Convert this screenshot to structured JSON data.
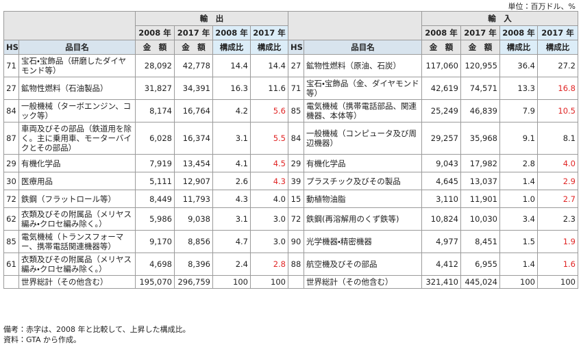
{
  "unit": "単位：百万ドル、%",
  "header": {
    "export": "輸　出",
    "import": "輸　入",
    "year_2008": "2008 年",
    "year_2017": "2017 年",
    "hs": "HS",
    "item": "品目名",
    "amount": "金　額",
    "share": "構成比"
  },
  "rows": [
    {
      "export": {
        "hs": "71",
        "name": "宝石・宝飾品（研磨したダイヤモンド等）",
        "amount_2008": "28,092",
        "amount_2017": "42,778",
        "share_2008": "14.4",
        "share_2017": "14.4",
        "share_rose": false
      },
      "import": {
        "hs": "27",
        "name": "鉱物性燃料（原油、石炭）",
        "amount_2008": "117,060",
        "amount_2017": "120,955",
        "share_2008": "36.4",
        "share_2017": "27.2",
        "share_rose": false
      }
    },
    {
      "export": {
        "hs": "27",
        "name": "鉱物性燃料（石油製品）",
        "amount_2008": "31,827",
        "amount_2017": "34,391",
        "share_2008": "16.3",
        "share_2017": "11.6",
        "share_rose": false
      },
      "import": {
        "hs": "71",
        "name": "宝石・宝飾品（金、ダイヤモンド等）",
        "amount_2008": "42,619",
        "amount_2017": "74,571",
        "share_2008": "13.3",
        "share_2017": "16.8",
        "share_rose": true
      }
    },
    {
      "export": {
        "hs": "84",
        "name": "一般機械（ターボエンジン、コック等）",
        "amount_2008": "8,174",
        "amount_2017": "16,764",
        "share_2008": "4.2",
        "share_2017": "5.6",
        "share_rose": true
      },
      "import": {
        "hs": "85",
        "name": "電気機械（携帯電話部品、関連機器、本体等）",
        "amount_2008": "25,249",
        "amount_2017": "46,839",
        "share_2008": "7.9",
        "share_2017": "10.5",
        "share_rose": true
      }
    },
    {
      "export": {
        "hs": "87",
        "name": "車両及びその部品（鉄道用を除く。主に乗用車、モーターバイクとその部品）",
        "amount_2008": "6,028",
        "amount_2017": "16,374",
        "share_2008": "3.1",
        "share_2017": "5.5",
        "share_rose": true
      },
      "import": {
        "hs": "84",
        "name": "一般機械（コンピュータ及び周辺機器）",
        "amount_2008": "29,257",
        "amount_2017": "35,968",
        "share_2008": "9.1",
        "share_2017": "8.1",
        "share_rose": false
      }
    },
    {
      "export": {
        "hs": "29",
        "name": "有機化学品",
        "amount_2008": "7,919",
        "amount_2017": "13,454",
        "share_2008": "4.1",
        "share_2017": "4.5",
        "share_rose": true
      },
      "import": {
        "hs": "29",
        "name": "有機化学品",
        "amount_2008": "9,043",
        "amount_2017": "17,982",
        "share_2008": "2.8",
        "share_2017": "4.0",
        "share_rose": true
      }
    },
    {
      "export": {
        "hs": "30",
        "name": "医療用品",
        "amount_2008": "5,111",
        "amount_2017": "12,907",
        "share_2008": "2.6",
        "share_2017": "4.3",
        "share_rose": true
      },
      "import": {
        "hs": "39",
        "name": "プラスチック及びその製品",
        "amount_2008": "4,645",
        "amount_2017": "13,037",
        "share_2008": "1.4",
        "share_2017": "2.9",
        "share_rose": true
      }
    },
    {
      "export": {
        "hs": "72",
        "name": "鉄鋼（フラットロール等）",
        "amount_2008": "8,449",
        "amount_2017": "11,793",
        "share_2008": "4.3",
        "share_2017": "4.0",
        "share_rose": false
      },
      "import": {
        "hs": "15",
        "name": "動植物油脂",
        "amount_2008": "3,110",
        "amount_2017": "11,901",
        "share_2008": "1.0",
        "share_2017": "2.7",
        "share_rose": true
      }
    },
    {
      "export": {
        "hs": "62",
        "name": "衣類及びその附属品（メリヤス編み・クロセ編み除く。）",
        "amount_2008": "5,986",
        "amount_2017": "9,038",
        "share_2008": "3.1",
        "share_2017": "3.0",
        "share_rose": false
      },
      "import": {
        "hs": "72",
        "name": "鉄鋼(再溶解用のくず鉄等)",
        "amount_2008": "10,824",
        "amount_2017": "10,030",
        "share_2008": "3.4",
        "share_2017": "2.3",
        "share_rose": false
      }
    },
    {
      "export": {
        "hs": "85",
        "name": "電気機械（トランスフォーマー、携帯電話関連機器等）",
        "amount_2008": "9,170",
        "amount_2017": "8,856",
        "share_2008": "4.7",
        "share_2017": "3.0",
        "share_rose": false
      },
      "import": {
        "hs": "90",
        "name": "光学機器・精密機器",
        "amount_2008": "4,977",
        "amount_2017": "8,451",
        "share_2008": "1.5",
        "share_2017": "1.9",
        "share_rose": true
      }
    },
    {
      "export": {
        "hs": "61",
        "name": "衣類及びその附属品（メリヤス編み・クロセ編み除く。）",
        "amount_2008": "4,698",
        "amount_2017": "8,396",
        "share_2008": "2.4",
        "share_2017": "2.8",
        "share_rose": true
      },
      "import": {
        "hs": "88",
        "name": "航空機及びその部品",
        "amount_2008": "4,412",
        "amount_2017": "6,955",
        "share_2008": "1.4",
        "share_2017": "1.6",
        "share_rose": true
      }
    }
  ],
  "total": {
    "label": "世界総計（その他含む）",
    "export": [
      "195,070",
      "296,759",
      "100",
      "100"
    ],
    "import": [
      "321,410",
      "445,024",
      "100",
      "100"
    ]
  },
  "notes": [
    "備考：赤字は、2008 年と比較して、上昇した構成比。",
    "資料：GTA から作成。"
  ]
}
